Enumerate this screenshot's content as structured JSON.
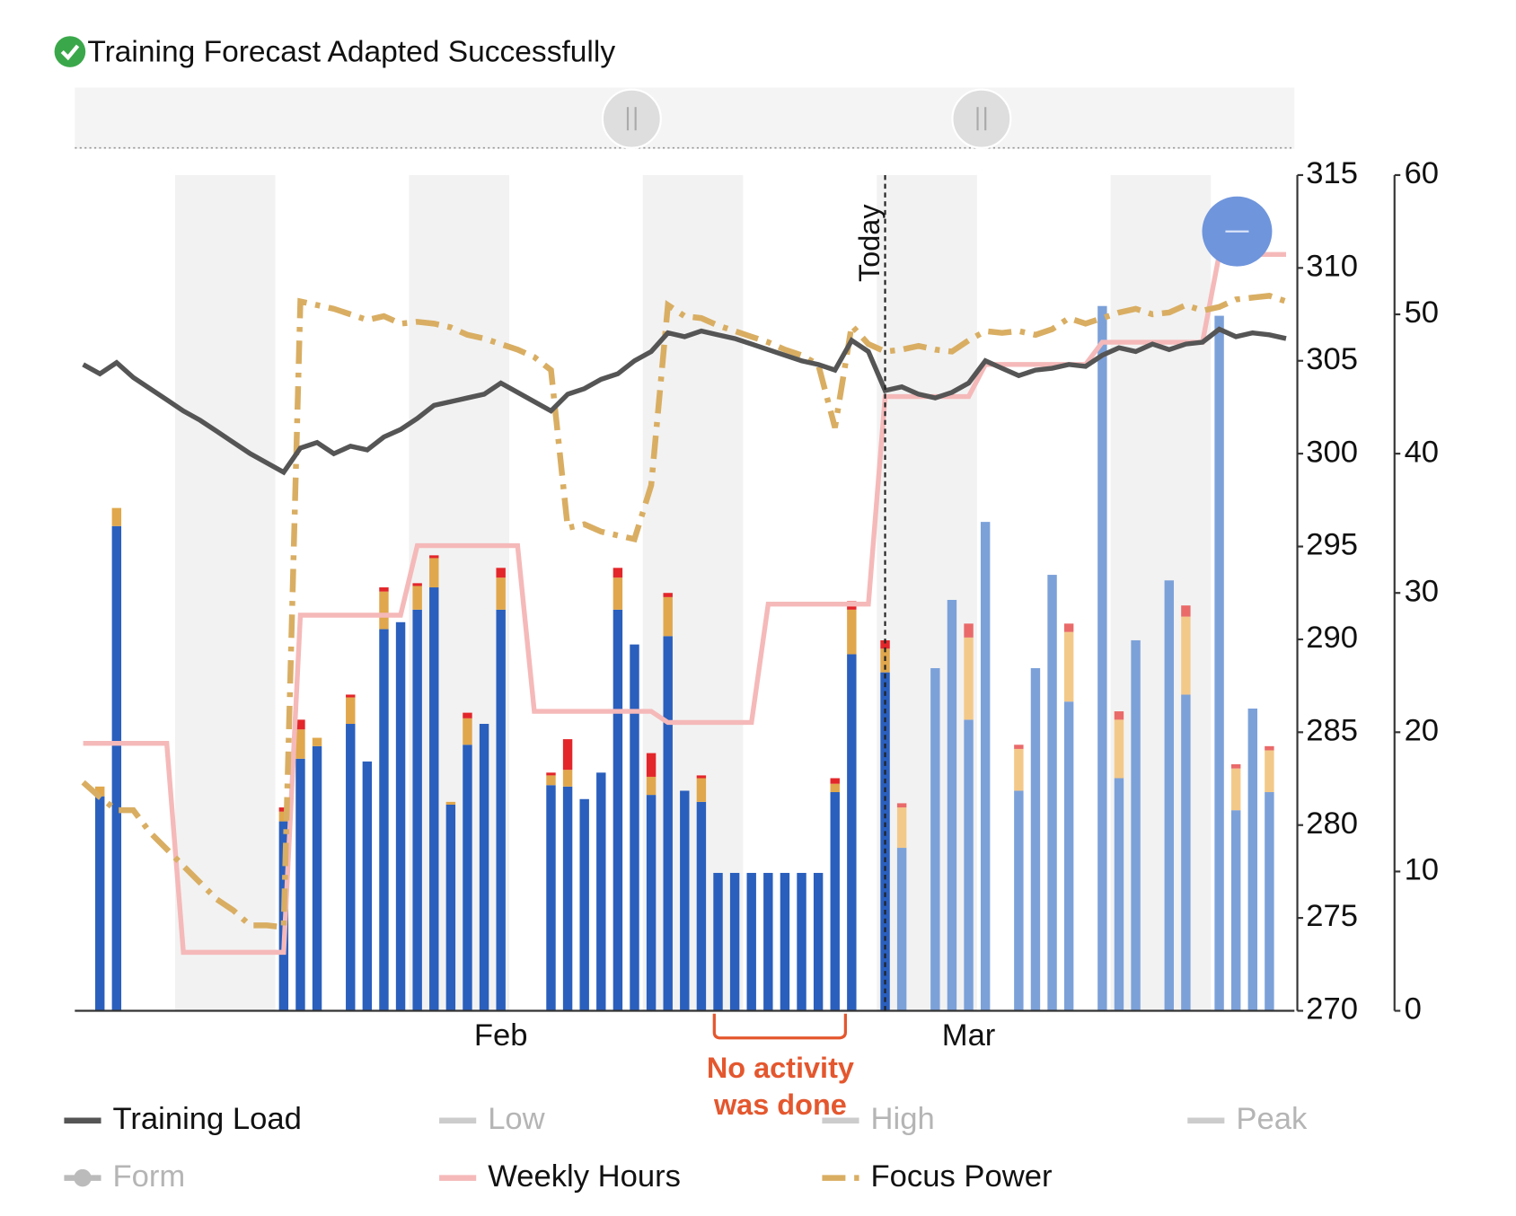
{
  "chart_data": {
    "type": "combo",
    "title": "Training Forecast Adapted Successfully",
    "categories": [
      null,
      null,
      null,
      null,
      null,
      null,
      null,
      null,
      null,
      null,
      null,
      null,
      null,
      null,
      null,
      null,
      null,
      null,
      null,
      null,
      null,
      null,
      null,
      null,
      null,
      "Feb",
      null,
      null,
      null,
      null,
      null,
      null,
      null,
      null,
      null,
      null,
      null,
      null,
      null,
      null,
      null,
      null,
      null,
      null,
      null,
      null,
      null,
      null,
      null,
      null,
      null,
      null,
      null,
      "Mar",
      null,
      null,
      null,
      null,
      null,
      null,
      null,
      null,
      null,
      null,
      null,
      null,
      null,
      null,
      null,
      null,
      null,
      null,
      null
    ],
    "ylim": [
      270,
      315
    ],
    "yticks": [
      270,
      275,
      280,
      285,
      290,
      295,
      300,
      305,
      310,
      315
    ],
    "y2lim": [
      0,
      60
    ],
    "y2ticks": [
      0,
      10,
      20,
      30,
      40,
      50,
      60
    ],
    "stacked": true,
    "series": [
      {
        "type": "bar",
        "axis": "y2",
        "color": "#2a5fbd",
        "forecast_color": "#7ca1d9",
        "values": [
          null,
          15.4,
          34.8,
          null,
          null,
          null,
          null,
          null,
          null,
          null,
          null,
          null,
          13.6,
          18.1,
          19.0,
          null,
          20.6,
          17.9,
          27.4,
          27.9,
          28.8,
          30.4,
          14.8,
          19.1,
          20.6,
          28.8,
          null,
          null,
          16.2,
          16.1,
          15.2,
          17.1,
          28.8,
          26.3,
          15.5,
          26.9,
          15.8,
          15.0,
          9.9,
          9.9,
          9.9,
          9.9,
          9.9,
          9.9,
          9.9,
          15.7,
          25.6,
          null,
          24.3,
          11.7,
          null,
          24.6,
          29.5,
          20.9,
          35.1,
          null,
          15.8,
          24.6,
          31.3,
          22.2,
          null,
          50.6,
          16.7,
          26.6,
          null,
          30.9,
          22.7,
          null,
          49.9,
          14.4,
          21.7,
          15.7,
          null
        ]
      },
      {
        "type": "bar",
        "axis": "y2",
        "color": "#e0a74c",
        "forecast_color": "#f3c98a",
        "values": [
          null,
          0.7,
          1.3,
          null,
          null,
          null,
          null,
          null,
          null,
          null,
          null,
          null,
          0.7,
          2.1,
          0.6,
          null,
          1.9,
          null,
          2.7,
          null,
          1.7,
          2.1,
          0.2,
          1.9,
          null,
          2.3,
          null,
          null,
          0.7,
          1.2,
          null,
          null,
          2.3,
          null,
          1.3,
          2.8,
          null,
          1.7,
          null,
          null,
          null,
          null,
          null,
          null,
          null,
          0.6,
          3.2,
          null,
          1.7,
          2.9,
          null,
          null,
          null,
          5.9,
          null,
          null,
          3.0,
          null,
          null,
          5.0,
          null,
          null,
          4.2,
          null,
          null,
          null,
          5.6,
          null,
          null,
          3.0,
          null,
          3.0,
          null
        ]
      },
      {
        "type": "bar",
        "axis": "y2",
        "color": "#e3262a",
        "forecast_color": "#ea6a6a",
        "values": [
          null,
          null,
          null,
          null,
          null,
          null,
          null,
          null,
          null,
          null,
          null,
          null,
          0.3,
          0.7,
          null,
          null,
          0.2,
          null,
          0.3,
          null,
          0.2,
          0.2,
          null,
          0.4,
          null,
          0.7,
          null,
          null,
          0.2,
          2.2,
          null,
          null,
          0.7,
          null,
          1.7,
          0.3,
          null,
          0.2,
          null,
          null,
          null,
          null,
          null,
          null,
          null,
          0.4,
          0.6,
          null,
          0.6,
          0.3,
          null,
          null,
          null,
          1.0,
          null,
          null,
          0.3,
          null,
          null,
          0.6,
          null,
          null,
          0.6,
          null,
          null,
          null,
          0.8,
          null,
          null,
          0.3,
          null,
          0.3,
          null
        ]
      },
      {
        "type": "line",
        "name": "Weekly Hours",
        "axis": "y2",
        "color": "#f5b9b9",
        "style": "solid",
        "values": [
          19.2,
          19.2,
          19.2,
          19.2,
          19.2,
          19.2,
          4.2,
          4.2,
          4.2,
          4.2,
          4.2,
          4.2,
          4.2,
          28.4,
          28.4,
          28.4,
          28.4,
          28.4,
          28.4,
          28.4,
          33.4,
          33.4,
          33.4,
          33.4,
          33.4,
          33.4,
          33.4,
          21.5,
          21.5,
          21.5,
          21.5,
          21.5,
          21.5,
          21.5,
          21.5,
          20.7,
          20.7,
          20.7,
          20.7,
          20.7,
          20.7,
          29.2,
          29.2,
          29.2,
          29.2,
          29.2,
          29.2,
          29.2,
          44.1,
          44.1,
          44.1,
          44.1,
          44.1,
          44.1,
          46.4,
          46.4,
          46.4,
          46.4,
          46.4,
          46.4,
          46.4,
          48.0,
          48.0,
          48.0,
          48.0,
          48.0,
          48.0,
          48.0,
          54.3,
          54.3,
          54.3,
          54.3,
          54.3
        ]
      },
      {
        "type": "line",
        "name": "Focus Power",
        "color": "#d9ae63",
        "style": "dashdot",
        "values": [
          282.3,
          281.5,
          280.8,
          280.8,
          279.6,
          278.7,
          277.8,
          276.9,
          276.0,
          275.4,
          274.6,
          274.6,
          274.5,
          308.2,
          308.0,
          307.8,
          307.5,
          307.2,
          307.4,
          307.0,
          307.1,
          307.0,
          306.8,
          306.4,
          306.2,
          305.9,
          305.6,
          305.2,
          304.5,
          296.0,
          296.2,
          295.8,
          295.6,
          295.4,
          298.3,
          308.0,
          307.4,
          307.3,
          306.9,
          306.6,
          306.3,
          306.0,
          305.6,
          305.3,
          304.8,
          301.4,
          306.9,
          305.9,
          305.5,
          305.6,
          305.8,
          305.6,
          305.5,
          306.1,
          306.6,
          306.5,
          306.6,
          306.4,
          306.7,
          307.3,
          307.0,
          307.3,
          307.6,
          307.8,
          307.5,
          307.6,
          308.0,
          307.7,
          307.9,
          308.3,
          308.4,
          308.5,
          308.2
        ]
      },
      {
        "type": "line",
        "name": "Training Load",
        "color": "#555555",
        "style": "solid",
        "values": [
          304.8,
          304.3,
          304.9,
          304.1,
          303.5,
          302.9,
          302.3,
          301.8,
          301.2,
          300.6,
          300.0,
          299.5,
          299.0,
          300.3,
          300.6,
          300.0,
          300.4,
          300.2,
          300.9,
          301.3,
          301.9,
          302.6,
          302.8,
          303.0,
          303.2,
          303.8,
          303.3,
          302.8,
          302.3,
          303.2,
          303.5,
          304.0,
          304.3,
          305.0,
          305.5,
          306.5,
          306.3,
          306.6,
          306.4,
          306.2,
          305.9,
          305.6,
          305.3,
          305.0,
          304.8,
          304.5,
          306.1,
          305.5,
          303.4,
          303.6,
          303.2,
          303.0,
          303.3,
          303.8,
          305.0,
          304.6,
          304.2,
          304.5,
          304.6,
          304.8,
          304.7,
          305.3,
          305.7,
          305.5,
          305.9,
          305.6,
          305.9,
          306.0,
          306.7,
          306.3,
          306.5,
          306.4,
          306.2
        ]
      }
    ],
    "legend": [
      {
        "name": "Training Load",
        "color": "#555555",
        "style": "solid",
        "enabled": true
      },
      {
        "name": "Low",
        "color": "#cccccc",
        "style": "solid",
        "enabled": false
      },
      {
        "name": "High",
        "color": "#cccccc",
        "style": "solid",
        "enabled": false
      },
      {
        "name": "Peak",
        "color": "#cccccc",
        "style": "solid",
        "enabled": false
      },
      {
        "name": "Form",
        "color": "#bbbbbb",
        "style": "dot",
        "enabled": false
      },
      {
        "name": "Weekly Hours",
        "color": "#f5b9b9",
        "style": "solid",
        "enabled": true
      },
      {
        "name": "Focus Power",
        "color": "#d9ae63",
        "style": "dashdot",
        "enabled": true
      }
    ],
    "today": {
      "label": "Today",
      "x": 48
    },
    "note": {
      "lines": [
        "No activity",
        "was done"
      ],
      "color": "#e4572e"
    }
  }
}
